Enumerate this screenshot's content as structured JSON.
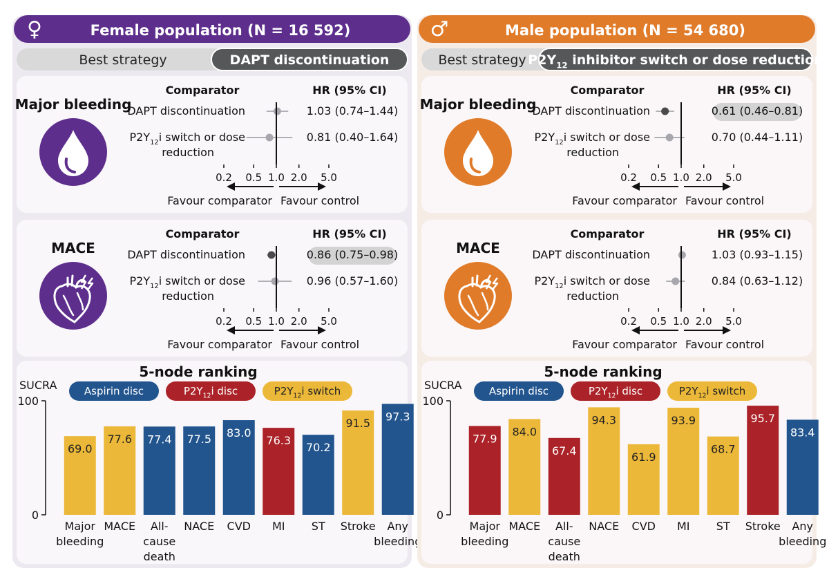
{
  "colors": {
    "female": "#5d2e8c",
    "male": "#e07b2a",
    "female_panel_bg": "#ede9f0",
    "male_panel_bg": "#f6ece6",
    "aspirin": "#22558e",
    "p2y12_disc": "#ab2328",
    "p2y12_switch": "#ecb839",
    "strategy_dark": "#555759",
    "strategy_light": "#d9d9d9"
  },
  "panels": [
    {
      "id": "female",
      "header_symbol": "♀",
      "header_title": "Female population (N = 16 592)",
      "best_strategy_label": "Best strategy",
      "best_strategy_value": "DAPT discontinuation",
      "outcomes": [
        {
          "name": "Major bleeding",
          "icon": "blood-drop-icon",
          "comparator_header": "Comparator",
          "hr_header": "HR (95% CI)",
          "rows": [
            {
              "label": "DAPT discontinuation",
              "hr_text": "1.03 (0.74–1.44)",
              "hr": 1.03,
              "lo": 0.74,
              "hi": 1.44,
              "significant": false
            },
            {
              "label_line1": "P2Y",
              "label_sub": "12",
              "label_line1_tail": "i switch or dose",
              "label_line2": "reduction",
              "hr_text": "0.81 (0.40–1.64)",
              "hr": 0.81,
              "lo": 0.4,
              "hi": 1.64,
              "significant": false
            }
          ],
          "axis_ticks": [
            "0.2",
            "0.5",
            "1.0",
            "2.0",
            "5.0"
          ],
          "favour_left": "Favour comparator",
          "favour_right": "Favour control"
        },
        {
          "name": "MACE",
          "icon": "heart-icon",
          "comparator_header": "Comparator",
          "hr_header": "HR (95% CI)",
          "rows": [
            {
              "label": "DAPT discontinuation",
              "hr_text": "0.86 (0.75–0.98)",
              "hr": 0.86,
              "lo": 0.75,
              "hi": 0.98,
              "significant": true
            },
            {
              "label_line1": "P2Y",
              "label_sub": "12",
              "label_line1_tail": "i switch or dose",
              "label_line2": "reduction",
              "hr_text": "0.96 (0.57–1.60)",
              "hr": 0.96,
              "lo": 0.57,
              "hi": 1.6,
              "significant": false
            }
          ],
          "axis_ticks": [
            "0.2",
            "0.5",
            "1.0",
            "2.0",
            "5.0"
          ],
          "favour_left": "Favour comparator",
          "favour_right": "Favour control"
        }
      ],
      "ranking": {
        "title": "5-node ranking",
        "ylabel": "SUCRA",
        "legend": [
          {
            "key": "aspirin",
            "pre": "Aspirin disc",
            "sub": "",
            "post": ""
          },
          {
            "key": "p2y12_disc",
            "pre": "P2Y",
            "sub": "12",
            "post": "i disc"
          },
          {
            "key": "p2y12_switch",
            "pre": "P2Y",
            "sub": "12",
            "post": "i switch"
          }
        ]
      }
    },
    {
      "id": "male",
      "header_symbol": "♂",
      "header_title": "Male population (N = 54 680)",
      "best_strategy_label": "Best strategy",
      "best_strategy_value_pre": "P2Y",
      "best_strategy_value_sub": "12",
      "best_strategy_value_post": " inhibitor switch or dose reduction",
      "outcomes": [
        {
          "name": "Major bleeding",
          "icon": "blood-drop-icon",
          "comparator_header": "Comparator",
          "hr_header": "HR (95% CI)",
          "rows": [
            {
              "label": "DAPT discontinuation",
              "hr_text": "0.61 (0.46–0.81)",
              "hr": 0.61,
              "lo": 0.46,
              "hi": 0.81,
              "significant": true
            },
            {
              "label_line1": "P2Y",
              "label_sub": "12",
              "label_line1_tail": "i switch or dose",
              "label_line2": "reduction",
              "hr_text": "0.70 (0.44–1.11)",
              "hr": 0.7,
              "lo": 0.44,
              "hi": 1.11,
              "significant": false
            }
          ],
          "axis_ticks": [
            "0.2",
            "0.5",
            "1.0",
            "2.0",
            "5.0"
          ],
          "favour_left": "Favour comparator",
          "favour_right": "Favour control"
        },
        {
          "name": "MACE",
          "icon": "heart-icon",
          "comparator_header": "Comparator",
          "hr_header": "HR (95% CI)",
          "rows": [
            {
              "label": "DAPT discontinuation",
              "hr_text": "1.03 (0.93–1.15)",
              "hr": 1.03,
              "lo": 0.93,
              "hi": 1.15,
              "significant": false
            },
            {
              "label_line1": "P2Y",
              "label_sub": "12",
              "label_line1_tail": "i switch or dose",
              "label_line2": "reduction",
              "hr_text": "0.84 (0.63–1.12)",
              "hr": 0.84,
              "lo": 0.63,
              "hi": 1.12,
              "significant": false
            }
          ],
          "axis_ticks": [
            "0.2",
            "0.5",
            "1.0",
            "2.0",
            "5.0"
          ],
          "favour_left": "Favour comparator",
          "favour_right": "Favour control"
        }
      ],
      "ranking": {
        "title": "5-node ranking",
        "ylabel": "SUCRA",
        "legend": [
          {
            "key": "aspirin",
            "pre": "Aspirin disc",
            "sub": "",
            "post": ""
          },
          {
            "key": "p2y12_disc",
            "pre": "P2Y",
            "sub": "12",
            "post": "i disc"
          },
          {
            "key": "p2y12_switch",
            "pre": "P2Y",
            "sub": "12",
            "post": "i switch"
          }
        ]
      }
    }
  ],
  "chart_data": [
    {
      "type": "bar",
      "title": "5-node ranking",
      "subtitle": "Female population (N = 16 592)",
      "ylabel": "SUCRA",
      "ylim": [
        0,
        100
      ],
      "yticks": [
        "0",
        "100"
      ],
      "categories": [
        [
          "Major",
          "bleeding"
        ],
        [
          "MACE"
        ],
        [
          "All-",
          "cause",
          "death"
        ],
        [
          "NACE"
        ],
        [
          "CVD"
        ],
        [
          "MI"
        ],
        [
          "ST"
        ],
        [
          "Stroke"
        ],
        [
          "Any",
          "bleeding"
        ]
      ],
      "values": [
        69.0,
        77.6,
        77.4,
        77.5,
        83.0,
        76.3,
        70.2,
        91.5,
        97.3
      ],
      "value_labels": [
        "69.0",
        "77.6",
        "77.4",
        "77.5",
        "83.0",
        "76.3",
        "70.2",
        "91.5",
        "97.3"
      ],
      "bar_strategy": [
        "p2y12_switch",
        "p2y12_switch",
        "aspirin",
        "aspirin",
        "aspirin",
        "p2y12_disc",
        "aspirin",
        "p2y12_switch",
        "aspirin"
      ]
    },
    {
      "type": "bar",
      "title": "5-node ranking",
      "subtitle": "Male population (N = 54 680)",
      "ylabel": "SUCRA",
      "ylim": [
        0,
        100
      ],
      "yticks": [
        "0",
        "100"
      ],
      "categories": [
        [
          "Major",
          "bleeding"
        ],
        [
          "MACE"
        ],
        [
          "All-",
          "cause",
          "death"
        ],
        [
          "NACE"
        ],
        [
          "CVD"
        ],
        [
          "MI"
        ],
        [
          "ST"
        ],
        [
          "Stroke"
        ],
        [
          "Any",
          "bleeding"
        ]
      ],
      "values": [
        77.9,
        84.0,
        67.4,
        94.3,
        61.9,
        93.9,
        68.7,
        95.7,
        83.4
      ],
      "value_labels": [
        "77.9",
        "84.0",
        "67.4",
        "94.3",
        "61.9",
        "93.9",
        "68.7",
        "95.7",
        "83.4"
      ],
      "bar_strategy": [
        "p2y12_disc",
        "p2y12_switch",
        "p2y12_disc",
        "p2y12_switch",
        "p2y12_switch",
        "p2y12_switch",
        "p2y12_switch",
        "p2y12_disc",
        "aspirin"
      ]
    }
  ]
}
